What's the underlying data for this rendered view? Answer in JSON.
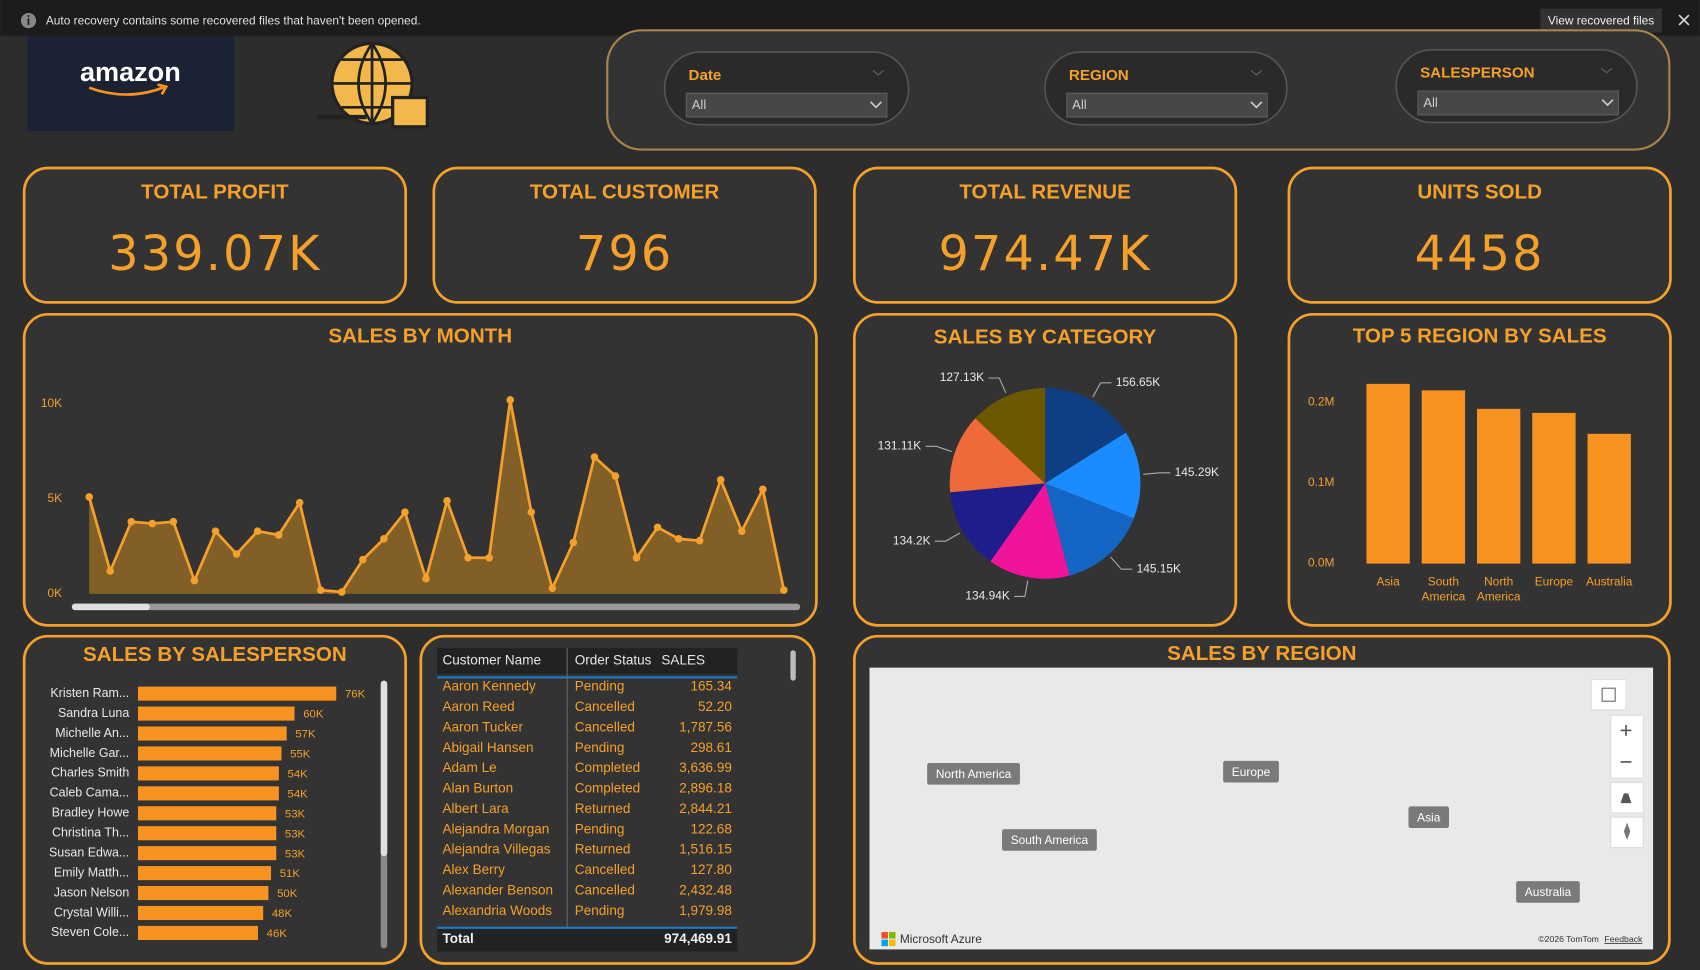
{
  "notification": {
    "text": "Auto recovery contains some recovered files that haven't been opened.",
    "button": "View recovered files"
  },
  "logo": "amazon",
  "filters": [
    {
      "label": "Date",
      "value": "All"
    },
    {
      "label": "REGION",
      "value": "All"
    },
    {
      "label": "SALESPERSON",
      "value": "All"
    }
  ],
  "kpis": [
    {
      "title": "TOTAL PROFIT",
      "value": "339.07K"
    },
    {
      "title": "TOTAL CUSTOMER",
      "value": "796"
    },
    {
      "title": "TOTAL REVENUE",
      "value": "974.47K"
    },
    {
      "title": "UNITS SOLD",
      "value": "4458"
    }
  ],
  "chart_data": [
    {
      "type": "line",
      "title": "SALES BY MONTH",
      "values": [
        5100,
        1200,
        3800,
        3700,
        3800,
        700,
        3300,
        2100,
        3300,
        3100,
        4800,
        200,
        100,
        1800,
        2900,
        4300,
        800,
        4900,
        1900,
        1900,
        10200,
        4300,
        300,
        2700,
        7200,
        6200,
        1900,
        3500,
        2900,
        2800,
        6000,
        3300,
        5500,
        200
      ],
      "ylim": [
        0,
        11000
      ],
      "yticks": [
        {
          "value": 0,
          "label": "0K"
        },
        {
          "value": 5000,
          "label": "5K"
        },
        {
          "value": 10000,
          "label": "10K"
        }
      ],
      "color": "#f5a02a"
    },
    {
      "type": "pie",
      "title": "SALES BY CATEGORY",
      "values": [
        156.65,
        145.29,
        145.15,
        134.94,
        134.2,
        131.11,
        127.13
      ],
      "value_labels": [
        "156.65K",
        "145.29K",
        "145.15K",
        "134.94K",
        "134.2K",
        "131.11K",
        "127.13K"
      ],
      "colors": [
        "#0d3f82",
        "#1a8cff",
        "#1566c4",
        "#f0149a",
        "#1d1e8c",
        "#ef6a3a",
        "#6b5800"
      ]
    },
    {
      "type": "bar",
      "title": "TOP 5 REGION BY SALES",
      "categories": [
        "Asia",
        "South America",
        "North America",
        "Europe",
        "Australia"
      ],
      "values": [
        0.223,
        0.215,
        0.192,
        0.187,
        0.161
      ],
      "ylim": [
        0,
        0.23
      ],
      "yticks": [
        {
          "value": 0,
          "label": "0.0M"
        },
        {
          "value": 0.1,
          "label": "0.1M"
        },
        {
          "value": 0.2,
          "label": "0.2M"
        }
      ],
      "color": "#f7931e"
    },
    {
      "type": "hbar",
      "title": "SALES BY SALESPERSON",
      "categories": [
        "Kristen Ram...",
        "Sandra Luna",
        "Michelle An...",
        "Michelle Gar...",
        "Charles Smith",
        "Caleb Cama...",
        "Bradley Howe",
        "Christina Th...",
        "Susan Edwa...",
        "Emily Matth...",
        "Jason Nelson",
        "Crystal Willi...",
        "Steven Cole..."
      ],
      "values": [
        76,
        60,
        57,
        55,
        54,
        54,
        53,
        53,
        53,
        51,
        50,
        48,
        46
      ],
      "value_labels": [
        "76K",
        "60K",
        "57K",
        "55K",
        "54K",
        "54K",
        "53K",
        "53K",
        "53K",
        "51K",
        "50K",
        "48K",
        "46K"
      ],
      "color": "#f7931e"
    }
  ],
  "table": {
    "columns": [
      "Customer Name",
      "Order Status",
      "SALES"
    ],
    "rows": [
      [
        "Aaron Kennedy",
        "Pending",
        "165.34"
      ],
      [
        "Aaron Reed",
        "Cancelled",
        "52.20"
      ],
      [
        "Aaron Tucker",
        "Cancelled",
        "1,787.56"
      ],
      [
        "Abigail Hansen",
        "Pending",
        "298.61"
      ],
      [
        "Adam Le",
        "Completed",
        "3,636.99"
      ],
      [
        "Alan Burton",
        "Completed",
        "2,896.18"
      ],
      [
        "Albert Lara",
        "Returned",
        "2,844.21"
      ],
      [
        "Alejandra Morgan",
        "Pending",
        "122.68"
      ],
      [
        "Alejandra Villegas",
        "Returned",
        "1,516.15"
      ],
      [
        "Alex Berry",
        "Cancelled",
        "127.80"
      ],
      [
        "Alexander Benson",
        "Cancelled",
        "2,432.48"
      ],
      [
        "Alexandria Woods",
        "Pending",
        "1,979.98"
      ]
    ],
    "total": [
      "Total",
      "974,469.91"
    ]
  },
  "map": {
    "title": "SALES BY REGION",
    "labels": [
      "North America",
      "Europe",
      "Asia",
      "South America",
      "Australia"
    ],
    "attribution": "Microsoft Azure",
    "copyright": "©2026 TomTom",
    "feedback": "Feedback"
  }
}
